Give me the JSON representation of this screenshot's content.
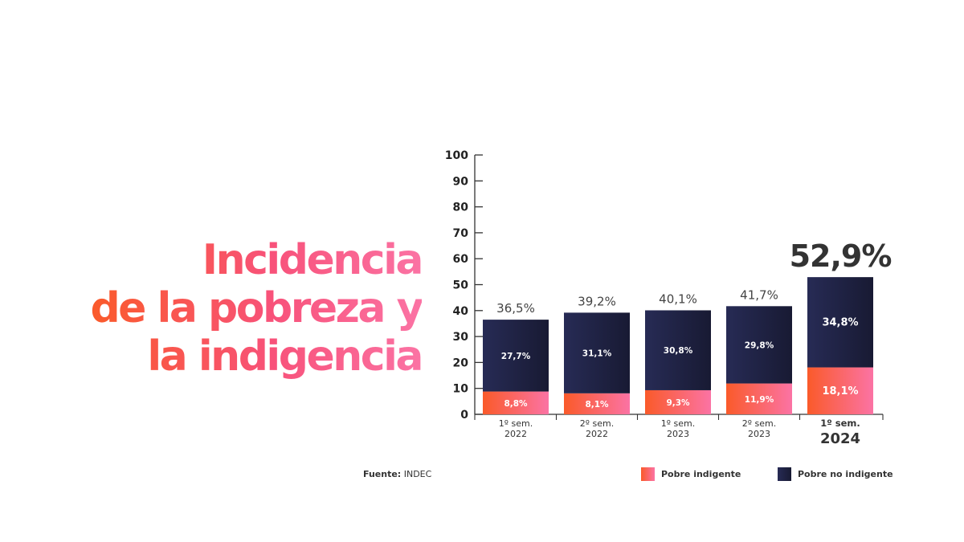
{
  "title": {
    "line1": "Incidencia",
    "line2": "de la pobreza y",
    "line3": "la indigencia"
  },
  "source": {
    "label": "Fuente:",
    "value": "INDEC"
  },
  "legend": {
    "indigent": "Pobre indigente",
    "non_indigent": "Pobre no indigente"
  },
  "colors": {
    "indigent_start": "#fa5a2a",
    "indigent_end": "#fb73a4",
    "non_indigent_start": "#272b55",
    "non_indigent_end": "#181a33",
    "axis": "#333333"
  },
  "chart_data": {
    "type": "bar",
    "stacked": true,
    "title": "Incidencia de la pobreza y la indigencia",
    "categories": [
      [
        "1º sem.",
        "2022"
      ],
      [
        "2º sem.",
        "2022"
      ],
      [
        "1º sem.",
        "2023"
      ],
      [
        "2º sem.",
        "2023"
      ],
      [
        "1º sem.",
        "2024"
      ]
    ],
    "highlight_index": 4,
    "series": [
      {
        "name": "Pobre indigente",
        "values": [
          8.8,
          8.1,
          9.3,
          11.9,
          18.1
        ],
        "labels": [
          "8,8%",
          "8,1%",
          "9,3%",
          "11,9%",
          "18,1%"
        ]
      },
      {
        "name": "Pobre no indigente",
        "values": [
          27.7,
          31.1,
          30.8,
          29.8,
          34.8
        ],
        "labels": [
          "27,7%",
          "31,1%",
          "30,8%",
          "29,8%",
          "34,8%"
        ]
      }
    ],
    "totals": [
      36.5,
      39.2,
      40.1,
      41.7,
      52.9
    ],
    "total_labels": [
      "36,5%",
      "39,2%",
      "40,1%",
      "41,7%",
      "52,9%"
    ],
    "yticks": [
      "0",
      "10",
      "20",
      "30",
      "40",
      "50",
      "60",
      "70",
      "80",
      "90",
      "100"
    ],
    "ylim": [
      0,
      100
    ],
    "xlabel": "",
    "ylabel": ""
  }
}
